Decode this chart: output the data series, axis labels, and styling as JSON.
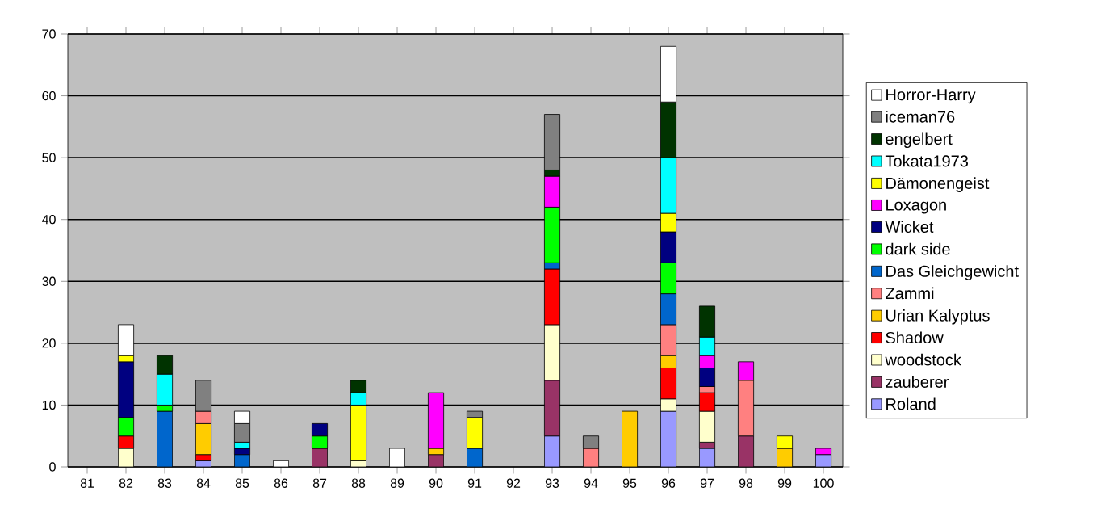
{
  "chart_data": {
    "type": "bar",
    "stacked": true,
    "categories": [
      "81",
      "82",
      "83",
      "84",
      "85",
      "86",
      "87",
      "88",
      "89",
      "90",
      "91",
      "92",
      "93",
      "94",
      "95",
      "96",
      "97",
      "98",
      "99",
      "100"
    ],
    "series": [
      {
        "name": "Roland",
        "color": "#9999ff",
        "values": [
          null,
          null,
          null,
          1,
          null,
          null,
          null,
          null,
          null,
          null,
          null,
          null,
          5,
          null,
          null,
          9,
          3,
          null,
          null,
          2
        ]
      },
      {
        "name": "zauberer",
        "color": "#993366",
        "values": [
          null,
          null,
          null,
          null,
          null,
          null,
          3,
          null,
          null,
          2,
          null,
          null,
          9,
          null,
          null,
          null,
          1,
          5,
          null,
          null
        ]
      },
      {
        "name": "woodstock",
        "color": "#ffffcc",
        "values": [
          null,
          3,
          null,
          null,
          null,
          null,
          null,
          1,
          null,
          null,
          null,
          null,
          9,
          null,
          null,
          2,
          5,
          null,
          null,
          null
        ]
      },
      {
        "name": "Shadow",
        "color": "#ff0000",
        "values": [
          null,
          2,
          null,
          1,
          null,
          null,
          null,
          null,
          null,
          null,
          null,
          null,
          9,
          null,
          null,
          5,
          3,
          null,
          null,
          null
        ]
      },
      {
        "name": "Urian Kalyptus",
        "color": "#ffcc00",
        "values": [
          null,
          null,
          null,
          5,
          null,
          null,
          null,
          null,
          null,
          1,
          null,
          null,
          null,
          null,
          9,
          2,
          null,
          null,
          3,
          null
        ]
      },
      {
        "name": "Zammi",
        "color": "#ff8080",
        "values": [
          null,
          null,
          null,
          2,
          null,
          null,
          null,
          null,
          null,
          null,
          null,
          null,
          null,
          3,
          null,
          5,
          1,
          9,
          null,
          null
        ]
      },
      {
        "name": "Das Gleichgewicht",
        "color": "#0066cc",
        "values": [
          null,
          null,
          9,
          null,
          2,
          null,
          null,
          null,
          null,
          null,
          3,
          null,
          1,
          null,
          null,
          5,
          null,
          null,
          null,
          null
        ]
      },
      {
        "name": "dark side",
        "color": "#00ff00",
        "values": [
          null,
          3,
          1,
          null,
          null,
          null,
          2,
          null,
          null,
          null,
          null,
          null,
          9,
          null,
          null,
          5,
          null,
          null,
          null,
          null
        ]
      },
      {
        "name": "Wicket",
        "color": "#000080",
        "values": [
          null,
          9,
          null,
          null,
          1,
          null,
          2,
          null,
          null,
          null,
          null,
          null,
          null,
          null,
          null,
          5,
          3,
          null,
          null,
          null
        ]
      },
      {
        "name": "Loxagon",
        "color": "#ff00ff",
        "values": [
          null,
          null,
          null,
          null,
          null,
          null,
          null,
          null,
          null,
          9,
          null,
          null,
          5,
          null,
          null,
          null,
          2,
          3,
          null,
          1
        ]
      },
      {
        "name": "Dämonengeist",
        "color": "#ffff00",
        "values": [
          null,
          1,
          null,
          null,
          null,
          null,
          null,
          9,
          null,
          null,
          5,
          null,
          null,
          null,
          null,
          3,
          null,
          null,
          2,
          null
        ]
      },
      {
        "name": "Tokata1973",
        "color": "#00ffff",
        "values": [
          null,
          null,
          5,
          null,
          1,
          null,
          null,
          2,
          null,
          null,
          null,
          null,
          null,
          null,
          null,
          9,
          3,
          null,
          null,
          null
        ]
      },
      {
        "name": "engelbert",
        "color": "#003300",
        "values": [
          null,
          null,
          3,
          null,
          null,
          null,
          null,
          2,
          null,
          null,
          null,
          null,
          1,
          null,
          null,
          9,
          5,
          null,
          null,
          null
        ]
      },
      {
        "name": "iceman76",
        "color": "#808080",
        "values": [
          null,
          null,
          null,
          5,
          3,
          null,
          null,
          null,
          null,
          null,
          1,
          null,
          9,
          2,
          null,
          null,
          null,
          null,
          null,
          null
        ]
      },
      {
        "name": "Horror-Harry",
        "color": "#ffffff",
        "values": [
          null,
          5,
          null,
          null,
          2,
          1,
          null,
          null,
          3,
          null,
          null,
          null,
          null,
          null,
          null,
          9,
          null,
          null,
          null,
          null
        ]
      }
    ],
    "ylim": [
      0,
      70
    ],
    "yticks": [
      0,
      10,
      20,
      30,
      40,
      50,
      60,
      70
    ],
    "grid": "y",
    "legend": "right"
  }
}
